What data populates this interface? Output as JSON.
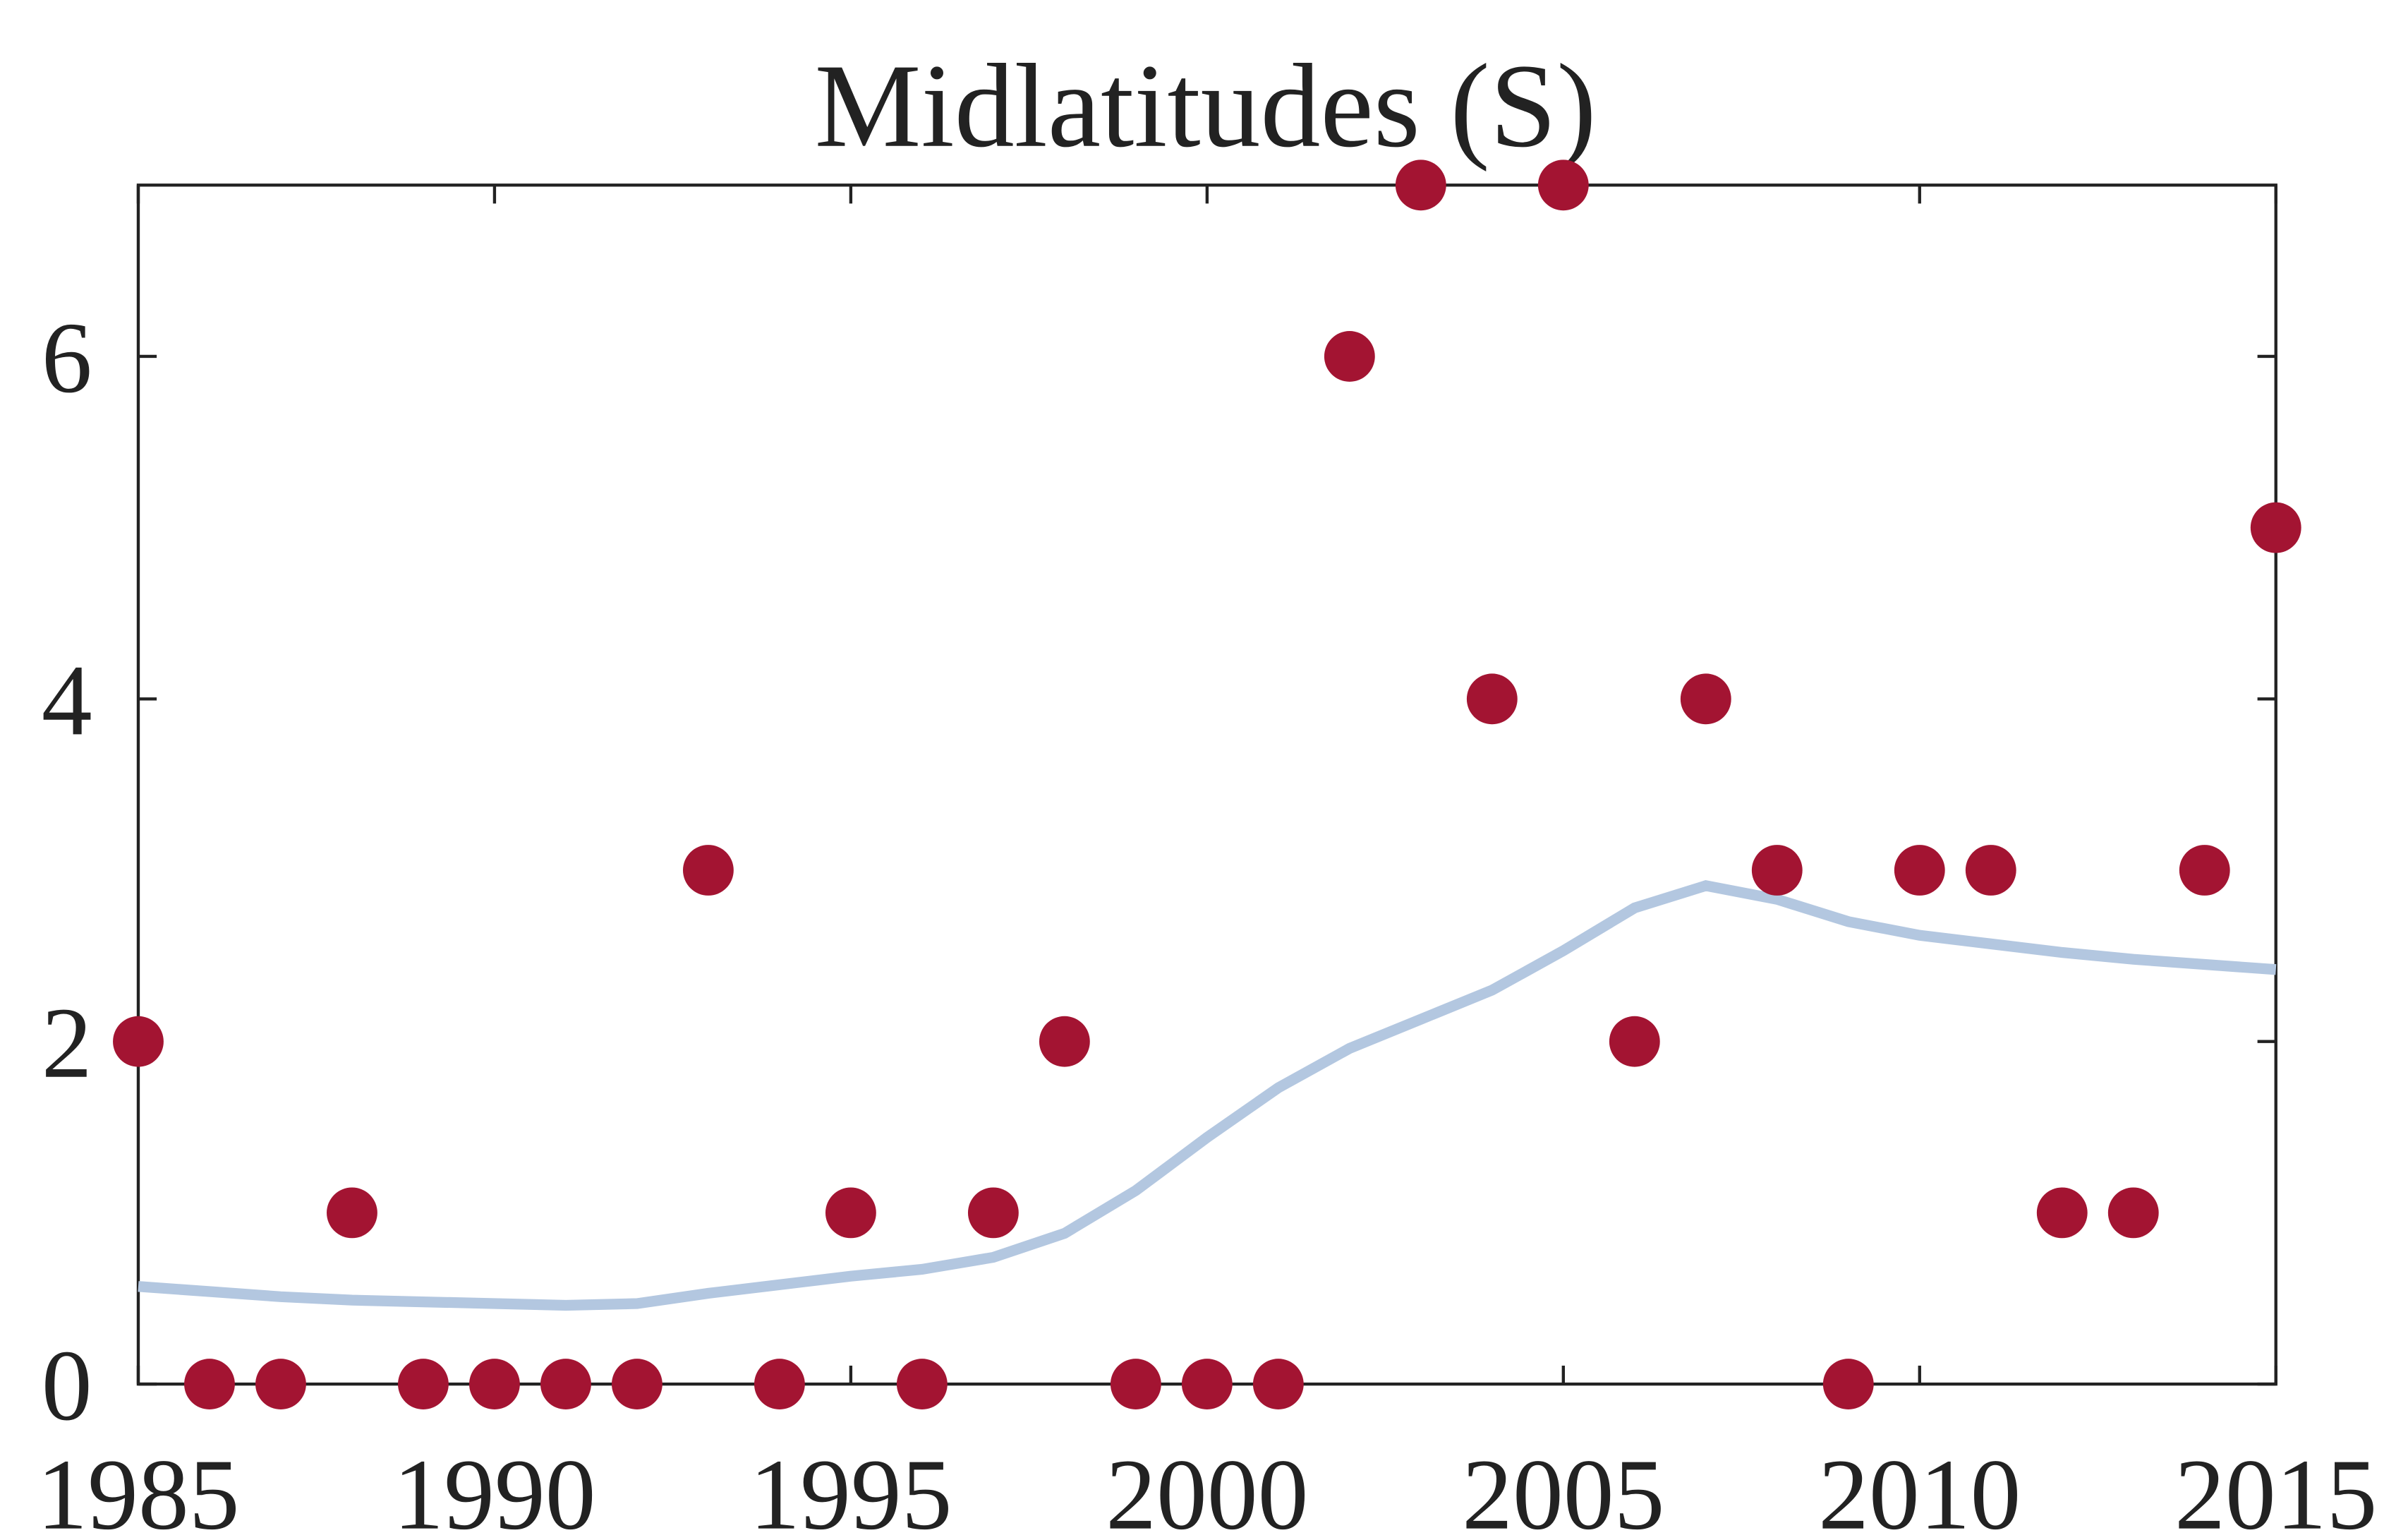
{
  "chart_data": {
    "type": "scatter",
    "title": "Midlatitudes (S)",
    "x": [
      1985,
      1986,
      1987,
      1988,
      1989,
      1990,
      1991,
      1992,
      1993,
      1994,
      1995,
      1996,
      1997,
      1998,
      1999,
      2000,
      2001,
      2002,
      2003,
      2004,
      2005,
      2006,
      2007,
      2008,
      2009,
      2010,
      2011,
      2012,
      2013,
      2014,
      2015
    ],
    "series": [
      {
        "type": "scatter",
        "color": "#a31432",
        "values": [
          2,
          0,
          0,
          1,
          0,
          0,
          0,
          0,
          3,
          0,
          1,
          0,
          1,
          2,
          0,
          0,
          0,
          6,
          7,
          4,
          7,
          2,
          4,
          3,
          0,
          3,
          3,
          1,
          1,
          3,
          5
        ]
      },
      {
        "type": "line",
        "color": "#b3c7e0",
        "values": [
          0.57,
          0.54,
          0.51,
          0.49,
          0.48,
          0.47,
          0.46,
          0.47,
          0.53,
          0.58,
          0.63,
          0.67,
          0.74,
          0.88,
          1.13,
          1.44,
          1.73,
          1.96,
          2.13,
          2.3,
          2.53,
          2.78,
          2.91,
          2.83,
          2.7,
          2.62,
          2.57,
          2.52,
          2.48,
          2.45,
          2.42
        ]
      }
    ],
    "xlim": [
      1985,
      2015
    ],
    "xticks": [
      1985,
      1990,
      1995,
      2000,
      2005,
      2010,
      2015
    ],
    "ylim": [
      0,
      7
    ],
    "yticks": [
      0,
      2,
      4,
      6
    ]
  }
}
